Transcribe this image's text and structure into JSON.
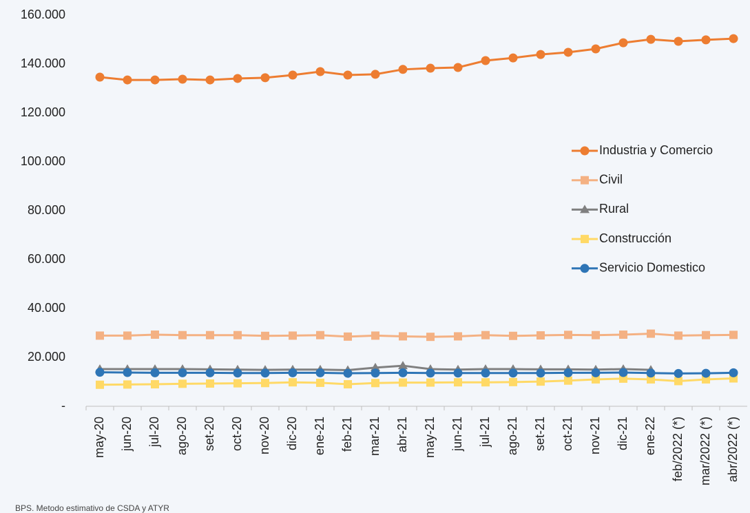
{
  "chart_data": {
    "type": "line",
    "categories": [
      "may-20",
      "jun-20",
      "jul-20",
      "ago-20",
      "set-20",
      "oct-20",
      "nov-20",
      "dic-20",
      "ene-21",
      "feb-21",
      "mar-21",
      "abr-21",
      "may-21",
      "jun-21",
      "jul-21",
      "ago-21",
      "set-21",
      "oct-21",
      "nov-21",
      "dic-21",
      "ene-22",
      "feb/2022 (*)",
      "mar/2022 (*)",
      "abr/2022 (*)"
    ],
    "series": [
      {
        "name": "Industria y Comercio",
        "color": "#ed7d31",
        "marker": "circle",
        "values": [
          134650,
          133500,
          133500,
          133800,
          133500,
          134100,
          134400,
          135500,
          136900,
          135500,
          135800,
          137800,
          138300,
          138600,
          141400,
          142500,
          143900,
          144800,
          146200,
          148700,
          150100,
          149300,
          149900,
          150400
        ]
      },
      {
        "name": "Civil",
        "color": "#f4b183",
        "marker": "square",
        "values": [
          28900,
          28900,
          29300,
          29100,
          29100,
          29100,
          28800,
          28900,
          29100,
          28500,
          28900,
          28600,
          28400,
          28600,
          29100,
          28800,
          29000,
          29200,
          29100,
          29300,
          29700,
          28900,
          29100,
          29200
        ]
      },
      {
        "name": "Rural",
        "color": "#808080",
        "marker": "triangle",
        "values": [
          15200,
          15200,
          15200,
          15200,
          15100,
          15000,
          14900,
          15000,
          15000,
          14800,
          15800,
          16600,
          15200,
          15000,
          15200,
          15200,
          15100,
          15100,
          15000,
          15200,
          14900,
          null,
          null,
          null
        ]
      },
      {
        "name": "Construcción",
        "color": "#ffd966",
        "marker": "square",
        "values": [
          8800,
          8900,
          9000,
          9200,
          9300,
          9400,
          9500,
          9800,
          9600,
          9000,
          9500,
          9700,
          9700,
          9800,
          9800,
          9900,
          10100,
          10500,
          11000,
          11300,
          11000,
          10300,
          11000,
          11400
        ]
      },
      {
        "name": "Servicio Domestico",
        "color": "#2e75b6",
        "marker": "circle",
        "values": [
          13900,
          13800,
          13700,
          13700,
          13700,
          13600,
          13600,
          13700,
          13700,
          13500,
          13600,
          13700,
          13600,
          13600,
          13600,
          13600,
          13600,
          13700,
          13700,
          13800,
          13600,
          13400,
          13500,
          13700
        ]
      }
    ],
    "ylim": [
      0,
      160000
    ],
    "yticks": [
      {
        "value": 0,
        "label": "-"
      },
      {
        "value": 20000,
        "label": "20.000"
      },
      {
        "value": 40000,
        "label": "40.000"
      },
      {
        "value": 60000,
        "label": "60.000"
      },
      {
        "value": 80000,
        "label": "80.000"
      },
      {
        "value": 100000,
        "label": "100.000"
      },
      {
        "value": 120000,
        "label": "120.000"
      },
      {
        "value": 140000,
        "label": "140.000"
      },
      {
        "value": 160000,
        "label": "160.000"
      }
    ],
    "grid": false,
    "legend": "right",
    "note": "BPS. Metodo estimativo de CSDA y ATYR"
  }
}
